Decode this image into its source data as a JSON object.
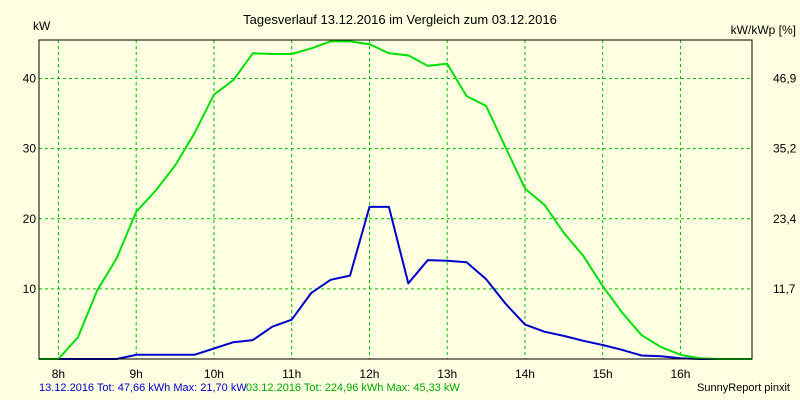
{
  "chart_data": {
    "type": "line",
    "title": "Tagesverlauf 13.12.2016 im Vergleich zum 03.12.2016",
    "ylabel_left": "kW",
    "ylabel_right": "kW/kWp [%]",
    "ylim": [
      0,
      45.5
    ],
    "xlim_hours": [
      7.75,
      16.92
    ],
    "x_ticks": [
      "8h",
      "9h",
      "10h",
      "11h",
      "12h",
      "13h",
      "14h",
      "15h",
      "16h"
    ],
    "y_ticks_left": [
      "10",
      "20",
      "30",
      "40"
    ],
    "y_ticks_right": [
      "11,7",
      "23,4",
      "35,2",
      "46,9"
    ],
    "grid": true,
    "colors": {
      "background": "#ffffe1",
      "grid": "#00c000",
      "series_blue": "#0000cc",
      "series_green": "#00e000"
    },
    "series": [
      {
        "color": "#0000cc",
        "x": [
          7.75,
          8.0,
          8.25,
          8.5,
          8.75,
          9.0,
          9.25,
          9.5,
          9.75,
          10.0,
          10.25,
          10.5,
          10.75,
          11.0,
          11.25,
          11.5,
          11.75,
          12.0,
          12.25,
          12.5,
          12.75,
          13.0,
          13.25,
          13.5,
          13.75,
          14.0,
          14.25,
          14.5,
          14.75,
          15.0,
          15.25,
          15.5,
          15.75,
          16.0,
          16.25,
          16.5,
          16.75,
          16.92
        ],
        "values": [
          0,
          0,
          0,
          0,
          0,
          0.6,
          0.6,
          0.6,
          0.6,
          1.5,
          2.4,
          2.7,
          4.6,
          5.6,
          9.4,
          11.3,
          11.9,
          21.7,
          21.7,
          10.8,
          14.1,
          14.0,
          13.8,
          11.4,
          7.9,
          4.9,
          3.9,
          3.3,
          2.6,
          2.0,
          1.3,
          0.5,
          0.4,
          0.1,
          0,
          0,
          0,
          0
        ]
      },
      {
        "color": "#00e000",
        "x": [
          7.75,
          8.0,
          8.25,
          8.5,
          8.75,
          9.0,
          9.25,
          9.5,
          9.75,
          10.0,
          10.25,
          10.5,
          10.75,
          11.0,
          11.25,
          11.5,
          11.75,
          12.0,
          12.25,
          12.5,
          12.75,
          13.0,
          13.25,
          13.5,
          13.75,
          14.0,
          14.25,
          14.5,
          14.75,
          15.0,
          15.25,
          15.5,
          15.75,
          16.0,
          16.25,
          16.5,
          16.75,
          16.92
        ],
        "values": [
          0,
          0,
          3.1,
          9.8,
          14.4,
          21.0,
          24.0,
          27.6,
          32.2,
          37.7,
          39.8,
          43.6,
          43.5,
          43.5,
          44.3,
          45.3,
          45.3,
          44.9,
          43.6,
          43.3,
          41.8,
          42.1,
          37.5,
          36.1,
          30.2,
          24.3,
          22.0,
          18.0,
          14.7,
          10.4,
          6.6,
          3.4,
          1.7,
          0.6,
          0.1,
          0,
          0,
          0
        ]
      }
    ]
  },
  "footer": {
    "blue_text": "13.12.2016 Tot: 47,66 kWh Max: 21,70 kW",
    "green_text": "03.12.2016 Tot: 224,96 kWh Max: 45,33 kW",
    "credit": "SunnyReport pinxit"
  }
}
